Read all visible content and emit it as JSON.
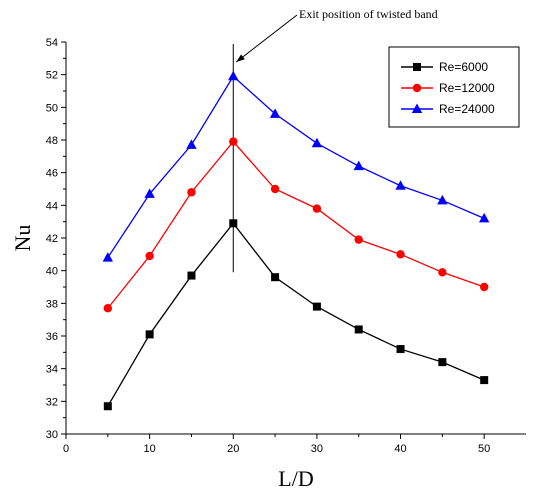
{
  "chart_data": {
    "type": "line",
    "xlabel": "L/D",
    "ylabel": "Nu",
    "xlim": [
      0,
      55
    ],
    "ylim": [
      30,
      54
    ],
    "xticks": [
      0,
      10,
      20,
      30,
      40,
      50
    ],
    "yticks": [
      30,
      32,
      34,
      36,
      38,
      40,
      42,
      44,
      46,
      48,
      50,
      52,
      54
    ],
    "x": [
      5,
      10,
      15,
      20,
      25,
      30,
      35,
      40,
      45,
      50
    ],
    "series": [
      {
        "name": "Re=6000",
        "color": "#000000",
        "marker": "square",
        "values": [
          31.7,
          36.1,
          39.7,
          42.9,
          39.6,
          37.8,
          36.4,
          35.2,
          34.4,
          33.3
        ]
      },
      {
        "name": "Re=12000",
        "color": "#ff0000",
        "marker": "circle",
        "values": [
          37.7,
          40.9,
          44.8,
          47.9,
          45.0,
          43.8,
          41.9,
          41.0,
          39.9,
          39.0
        ]
      },
      {
        "name": "Re=24000",
        "color": "#0000ff",
        "marker": "triangle",
        "values": [
          40.8,
          44.7,
          47.7,
          51.9,
          49.6,
          47.8,
          46.4,
          45.2,
          44.3,
          43.2
        ]
      }
    ],
    "annotation": {
      "text": "Exit position of twisted band",
      "x": 20
    },
    "legend_position": "top-right",
    "grid": false
  }
}
